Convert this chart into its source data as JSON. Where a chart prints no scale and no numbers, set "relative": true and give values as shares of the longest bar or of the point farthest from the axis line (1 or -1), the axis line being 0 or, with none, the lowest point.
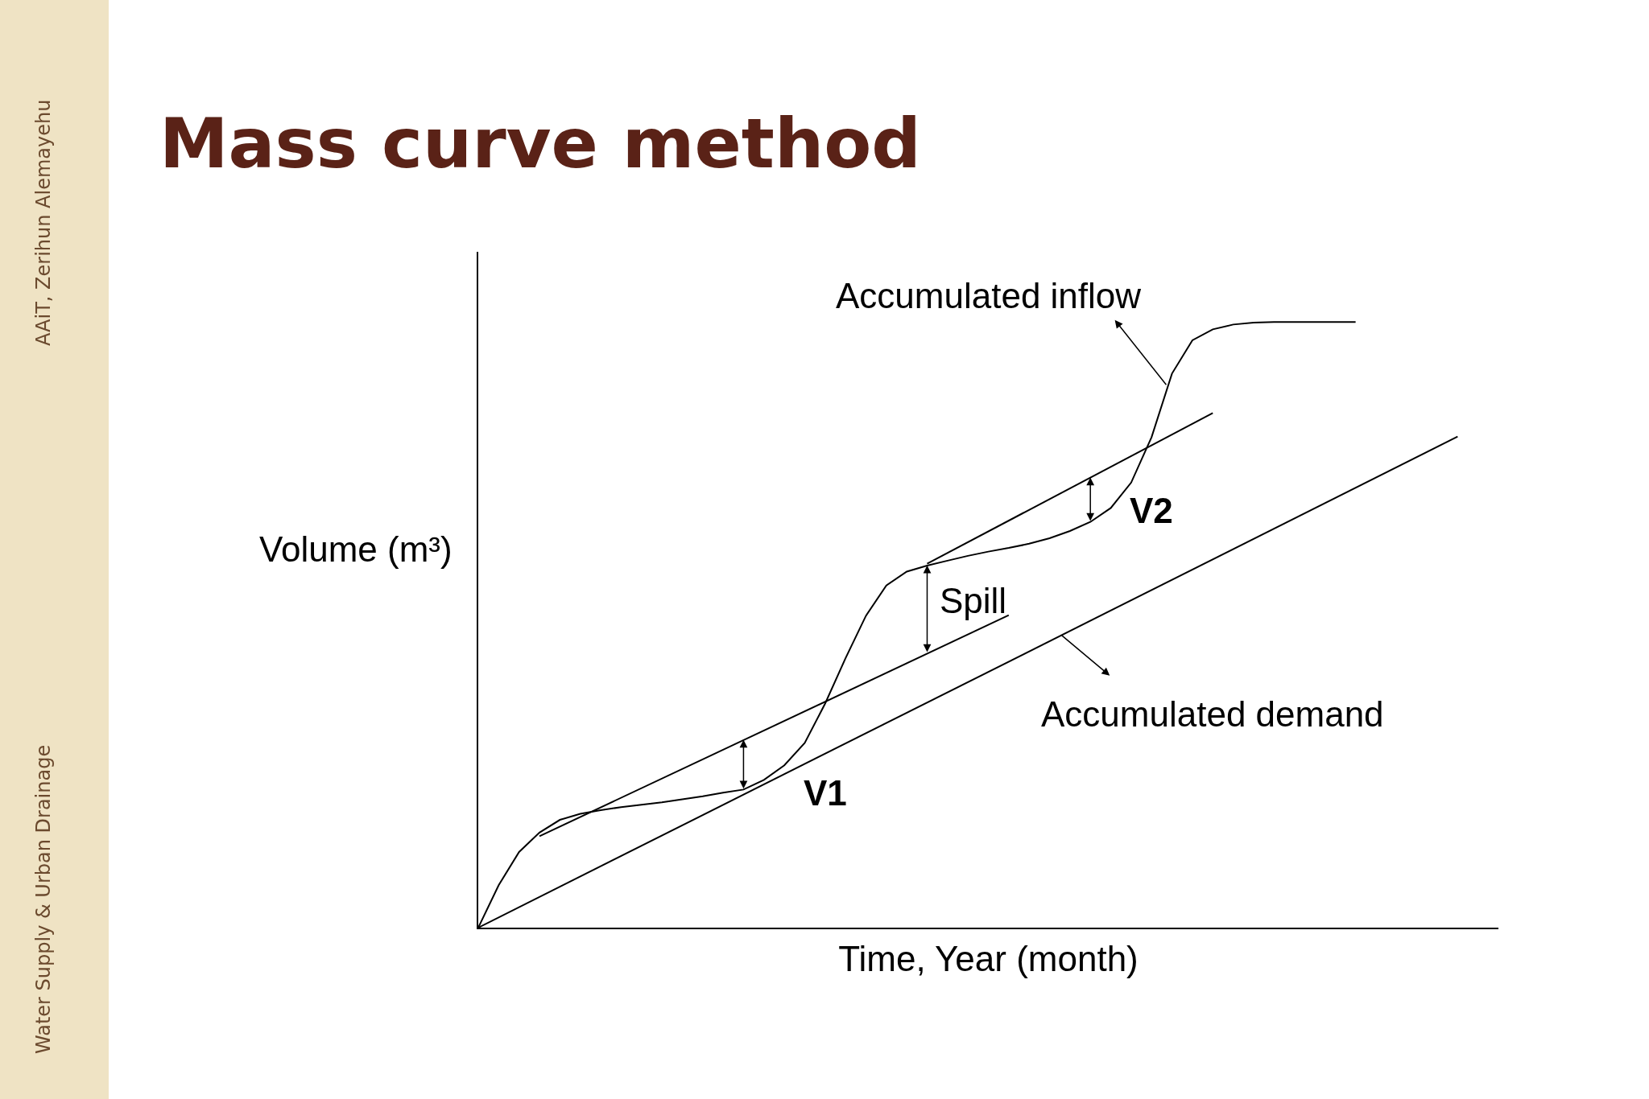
{
  "chart_data": {
    "type": "line",
    "title": "Mass curve method",
    "ylabel": "Volume (m³)",
    "xlabel": "Time, Year (month)",
    "relative": true,
    "marker": "none",
    "categories": [
      null,
      null,
      null,
      null,
      null,
      null,
      null,
      null,
      null,
      null,
      null,
      null,
      null,
      null,
      null,
      null,
      null,
      null,
      null,
      null,
      null,
      null,
      null,
      null,
      null,
      null,
      null,
      null,
      null,
      null,
      null,
      null,
      null,
      null,
      null,
      null,
      null,
      null,
      null,
      null,
      null,
      null,
      null,
      null,
      null,
      null,
      null,
      null,
      null
    ],
    "series": [
      {
        "color": "#000000",
        "values": [
          0,
          0.07,
          0.125,
          0.157,
          0.178,
          0.188,
          0.194,
          0.199,
          0.203,
          0.207,
          0.212,
          0.217,
          0.223,
          0.228,
          0.244,
          0.268,
          0.305,
          0.37,
          0.445,
          0.515,
          0.565,
          0.588,
          0.598,
          0.606,
          0.614,
          0.621,
          0.627,
          0.634,
          0.643,
          0.655,
          0.67,
          0.693,
          0.735,
          0.81,
          0.915,
          0.97,
          0.988,
          0.996,
          0.999,
          1.0,
          1.0,
          1.0,
          1.0,
          1.0,
          null,
          null,
          null,
          null,
          null
        ]
      },
      {
        "color": "#000000",
        "values": [
          0,
          null,
          null,
          null,
          null,
          null,
          null,
          null,
          null,
          null,
          null,
          null,
          null,
          null,
          null,
          null,
          null,
          null,
          null,
          null,
          null,
          null,
          null,
          null,
          null,
          null,
          null,
          null,
          null,
          null,
          null,
          null,
          null,
          null,
          null,
          null,
          null,
          null,
          null,
          null,
          null,
          null,
          null,
          null,
          null,
          null,
          null,
          null,
          0.811
        ]
      },
      {
        "color": "#000000",
        "values": [
          null,
          null,
          null,
          0.151,
          null,
          null,
          null,
          null,
          null,
          null,
          null,
          null,
          null,
          null,
          null,
          null,
          null,
          null,
          null,
          null,
          null,
          null,
          null,
          null,
          null,
          null,
          0.516,
          null,
          null,
          null,
          null,
          null,
          null,
          null,
          null,
          null,
          null,
          null,
          null,
          null,
          null,
          null,
          null,
          null,
          null,
          null,
          null,
          null,
          null
        ]
      },
      {
        "color": "#000000",
        "values": [
          null,
          null,
          null,
          null,
          null,
          null,
          null,
          null,
          null,
          null,
          null,
          null,
          null,
          null,
          null,
          null,
          null,
          null,
          null,
          null,
          null,
          null,
          0.601,
          null,
          null,
          null,
          null,
          null,
          null,
          null,
          null,
          null,
          null,
          null,
          null,
          null,
          0.85,
          null,
          null,
          null,
          null,
          null,
          null,
          null,
          null,
          null,
          null,
          null,
          null
        ]
      }
    ],
    "annotations": [
      "AAiT, Zerihun Alemayehu",
      "Water Supply & Urban Drainage",
      "V1",
      "V2",
      "Spill",
      "Accumulated inflow",
      "Accumulated demand"
    ]
  }
}
